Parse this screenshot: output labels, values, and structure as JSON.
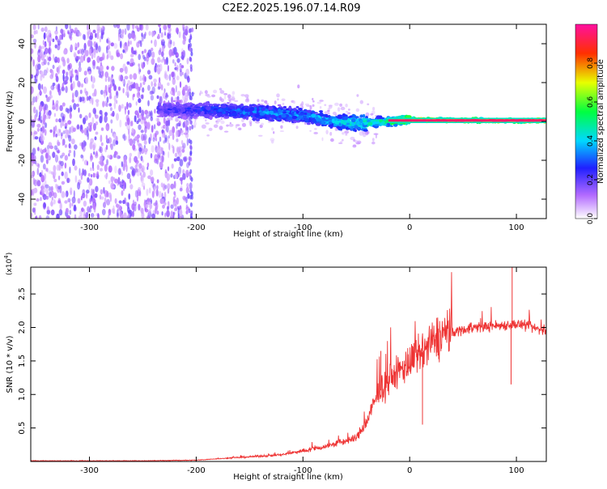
{
  "title": "C2E2.2025.196.07.14.R09",
  "chart_data": [
    {
      "type": "heatmap",
      "xlabel": "Height of straight line (km)",
      "ylabel": "Frequency (Hz)",
      "xlim": [
        -355,
        128
      ],
      "ylim": [
        -50,
        50
      ],
      "x_ticks": [
        -300,
        -200,
        -100,
        0,
        100
      ],
      "y_ticks": [
        -40,
        -20,
        0,
        20,
        40
      ],
      "colorbar": {
        "label": "Normalized spectral amplitude",
        "range": [
          0,
          1
        ],
        "ticks": [
          "0.0",
          "0.2",
          "0.4",
          "0.6",
          "0.8"
        ],
        "stops": [
          "#ffffff",
          "#8a2be2",
          "#0000ff",
          "#00e5ff",
          "#00ff00",
          "#ffff00",
          "#ff0000",
          "#ff00c8"
        ]
      },
      "ridge": [
        {
          "x": -230,
          "f": 6,
          "amp": 0.25
        },
        {
          "x": -200,
          "f": 6,
          "amp": 0.3
        },
        {
          "x": -150,
          "f": 5,
          "amp": 0.38
        },
        {
          "x": -100,
          "f": 3,
          "amp": 0.4
        },
        {
          "x": -70,
          "f": 0,
          "amp": 0.45
        },
        {
          "x": -50,
          "f": -1,
          "amp": 0.5
        },
        {
          "x": -20,
          "f": 0,
          "amp": 0.6
        },
        {
          "x": 0,
          "f": 1,
          "amp": 0.8
        },
        {
          "x": 50,
          "f": 0.5,
          "amp": 0.95
        },
        {
          "x": 128,
          "f": 0.5,
          "amp": 0.98
        }
      ]
    },
    {
      "type": "line",
      "xlabel": "Height of straight line (km)",
      "ylabel": "SNR (10 * v/v)",
      "y_multiplier": "(x10",
      "y_multiplier_exp": "4",
      "xlim": [
        -355,
        128
      ],
      "ylim": [
        0,
        2.9
      ],
      "x_ticks": [
        -300,
        -200,
        -100,
        0,
        100
      ],
      "y_ticks": [
        0.5,
        1.0,
        1.5,
        2.0,
        2.5
      ],
      "color": "#ee3333",
      "trend": [
        {
          "x": -355,
          "y": 0.01
        },
        {
          "x": -250,
          "y": 0.01
        },
        {
          "x": -200,
          "y": 0.02
        },
        {
          "x": -170,
          "y": 0.05
        },
        {
          "x": -120,
          "y": 0.1
        },
        {
          "x": -80,
          "y": 0.22
        },
        {
          "x": -50,
          "y": 0.35
        },
        {
          "x": -40,
          "y": 0.6
        },
        {
          "x": -30,
          "y": 1.0
        },
        {
          "x": -20,
          "y": 1.2
        },
        {
          "x": -10,
          "y": 1.35
        },
        {
          "x": 10,
          "y": 1.6
        },
        {
          "x": 30,
          "y": 1.9
        },
        {
          "x": 60,
          "y": 2.0
        },
        {
          "x": 100,
          "y": 2.05
        },
        {
          "x": 128,
          "y": 1.95
        }
      ],
      "peaks": [
        {
          "x": 96,
          "y": 2.9
        },
        {
          "x": 95,
          "y": 1.15
        },
        {
          "x": 12,
          "y": 0.55
        },
        {
          "x": -27,
          "y": 1.65
        }
      ]
    }
  ]
}
